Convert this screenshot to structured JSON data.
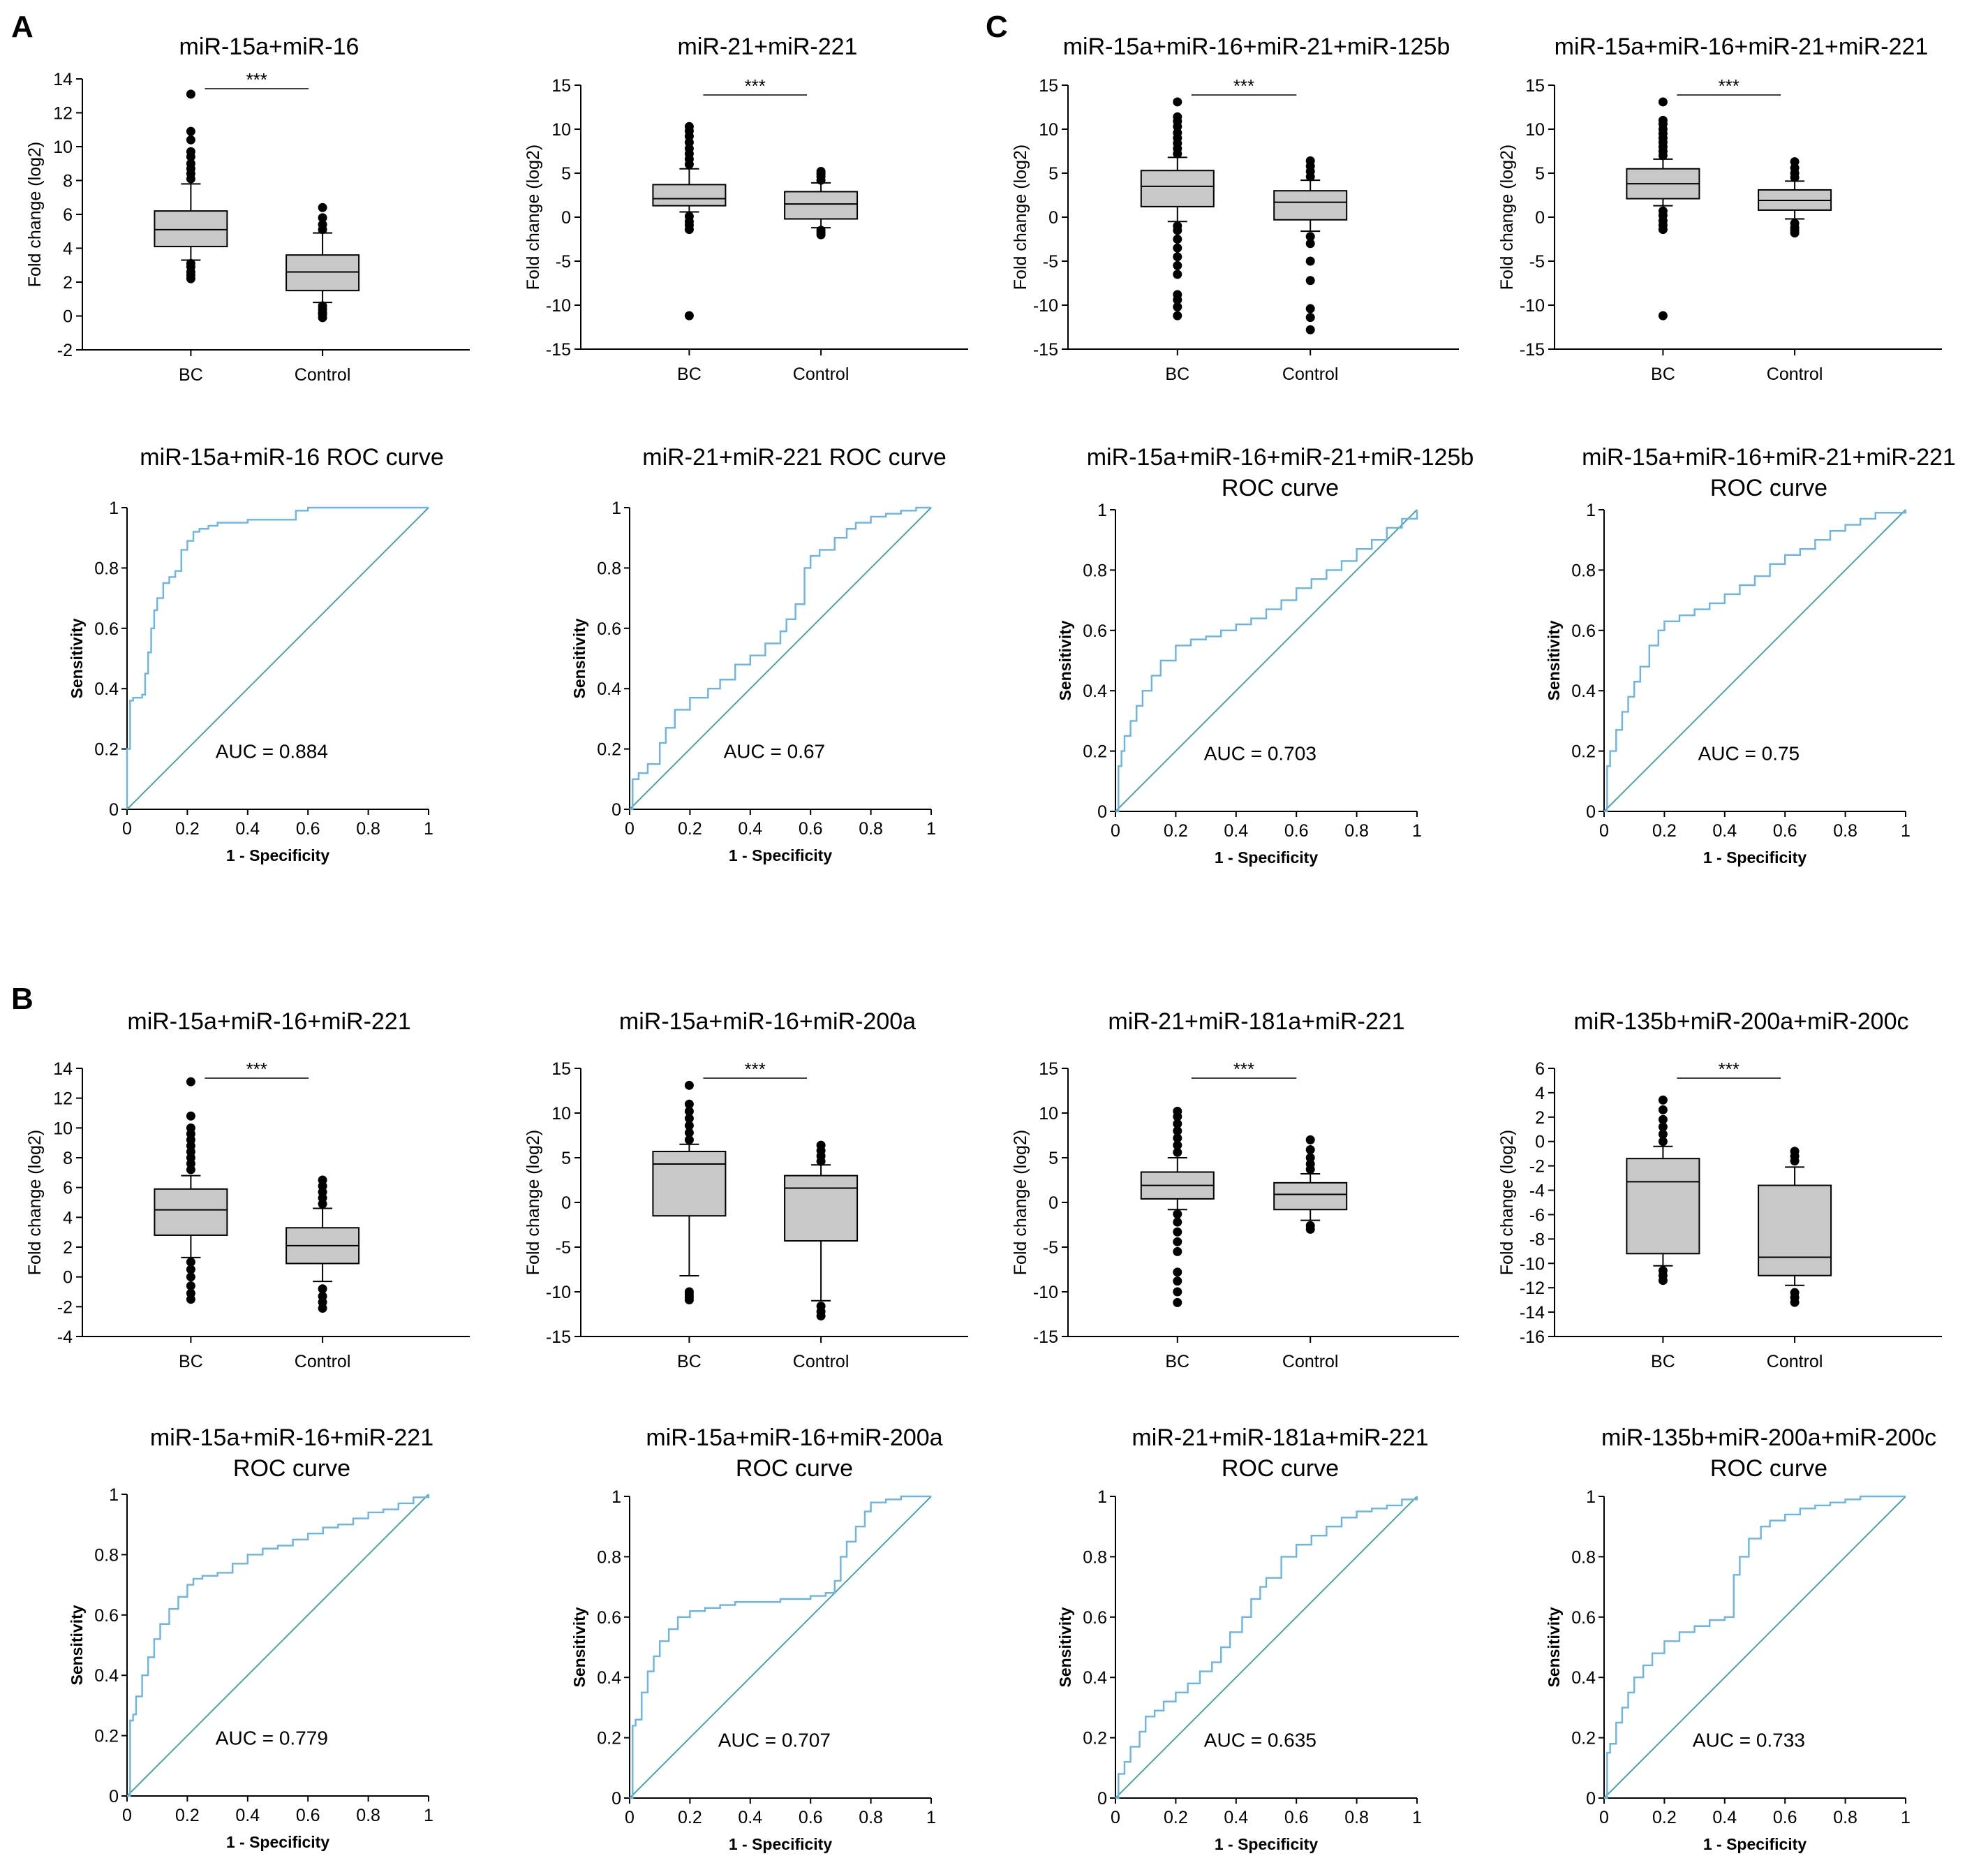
{
  "panel_labels": [
    "A",
    "B",
    "C"
  ],
  "colors": {
    "box_fill": "#c8c8c8",
    "roc_curve": "#6ab4e6",
    "diagonal": "#4aa3a0",
    "axis": "#000000"
  },
  "chart_data": [
    {
      "type": "box",
      "group": "A",
      "title": "miR-15a+miR-16",
      "ylabel": "Fold change (log2)",
      "ylim": [
        -2,
        14
      ],
      "yticks": [
        -2,
        0,
        2,
        4,
        6,
        8,
        10,
        12,
        14
      ],
      "categories": [
        "BC",
        "Control"
      ],
      "significance": "***",
      "boxes": [
        {
          "q1": 4.1,
          "median": 5.1,
          "q3": 6.2,
          "whisker_low": 3.3,
          "whisker_high": 7.8,
          "outliers": [
            2.2,
            2.4,
            2.6,
            2.9,
            3.1,
            8.1,
            8.4,
            8.7,
            9.0,
            9.4,
            9.7,
            10.4,
            10.9,
            13.1
          ]
        },
        {
          "q1": 1.5,
          "median": 2.6,
          "q3": 3.6,
          "whisker_low": 0.8,
          "whisker_high": 4.9,
          "outliers": [
            -0.1,
            0.1,
            0.2,
            0.4,
            0.6,
            5.1,
            5.4,
            5.8,
            6.4
          ]
        }
      ]
    },
    {
      "type": "box",
      "group": "A",
      "title": "miR-21+miR-221",
      "ylabel": "Fold change (log2)",
      "ylim": [
        -15,
        15
      ],
      "yticks": [
        -15,
        -10,
        -5,
        0,
        5,
        10,
        15
      ],
      "categories": [
        "BC",
        "Control"
      ],
      "significance": "***",
      "boxes": [
        {
          "q1": 1.3,
          "median": 2.1,
          "q3": 3.7,
          "whisker_low": 0.6,
          "whisker_high": 5.5,
          "outliers": [
            -11.2,
            -1.4,
            -0.9,
            -0.5,
            0.1,
            6.0,
            6.6,
            7.2,
            7.8,
            8.5,
            9.2,
            9.8,
            10.3
          ]
        },
        {
          "q1": -0.2,
          "median": 1.5,
          "q3": 2.9,
          "whisker_low": -1.2,
          "whisker_high": 3.9,
          "outliers": [
            -2.0,
            -1.7,
            -1.5,
            4.2,
            4.6,
            4.9,
            5.2
          ]
        }
      ]
    },
    {
      "type": "box",
      "group": "C",
      "title": "miR-15a+miR-16+miR-21+miR-125b",
      "ylabel": "Fold change (log2)",
      "ylim": [
        -15,
        15
      ],
      "yticks": [
        -15,
        -10,
        -5,
        0,
        5,
        10,
        15
      ],
      "categories": [
        "BC",
        "Control"
      ],
      "significance": "***",
      "boxes": [
        {
          "q1": 1.2,
          "median": 3.5,
          "q3": 5.3,
          "whisker_low": -0.5,
          "whisker_high": 6.8,
          "outliers": [
            -11.2,
            -10.2,
            -9.4,
            -8.8,
            -6.5,
            -5.5,
            -4.5,
            -3.5,
            -2.5,
            -1.5,
            -1.0,
            7.2,
            7.8,
            8.4,
            9.0,
            9.6,
            10.3,
            10.9,
            11.4,
            13.1
          ]
        },
        {
          "q1": -0.3,
          "median": 1.7,
          "q3": 3.0,
          "whisker_low": -1.6,
          "whisker_high": 4.2,
          "outliers": [
            -12.8,
            -11.4,
            -10.4,
            -7.2,
            -5.0,
            -3.0,
            -2.2,
            4.6,
            5.2,
            5.8,
            6.4
          ]
        }
      ]
    },
    {
      "type": "box",
      "group": "C",
      "title": "miR-15a+miR-16+miR-21+miR-221",
      "ylabel": "Fold change (log2)",
      "ylim": [
        -15,
        15
      ],
      "yticks": [
        -15,
        -10,
        -5,
        0,
        5,
        10,
        15
      ],
      "categories": [
        "BC",
        "Control"
      ],
      "significance": "***",
      "boxes": [
        {
          "q1": 2.1,
          "median": 3.8,
          "q3": 5.5,
          "whisker_low": 1.3,
          "whisker_high": 6.6,
          "outliers": [
            -11.2,
            -1.4,
            -0.9,
            -0.4,
            0.2,
            0.7,
            7.0,
            7.5,
            8.0,
            8.5,
            9.0,
            9.5,
            10.0,
            10.6,
            11.0,
            13.1
          ]
        },
        {
          "q1": 0.8,
          "median": 1.9,
          "q3": 3.1,
          "whisker_low": -0.2,
          "whisker_high": 4.1,
          "outliers": [
            -1.8,
            -1.5,
            -1.2,
            -0.7,
            4.5,
            5.0,
            5.6,
            6.3
          ]
        }
      ]
    },
    {
      "type": "roc",
      "group": "A",
      "title_lines": [
        "miR-15a+miR-16 ROC curve"
      ],
      "xlabel": "1 - Specificity",
      "ylabel": "Sensitivity",
      "auc_label": "AUC = 0.884",
      "x": [
        0,
        0,
        0.01,
        0.01,
        0.02,
        0.05,
        0.06,
        0.07,
        0.08,
        0.09,
        0.1,
        0.12,
        0.14,
        0.16,
        0.18,
        0.2,
        0.22,
        0.24,
        0.27,
        0.3,
        0.35,
        0.4,
        0.5,
        0.55,
        0.56,
        0.6,
        0.7,
        0.8,
        0.9,
        1.0
      ],
      "y": [
        0,
        0.2,
        0.21,
        0.36,
        0.37,
        0.38,
        0.45,
        0.52,
        0.6,
        0.66,
        0.7,
        0.75,
        0.77,
        0.79,
        0.86,
        0.89,
        0.92,
        0.93,
        0.94,
        0.95,
        0.95,
        0.96,
        0.96,
        0.96,
        0.99,
        1.0,
        1.0,
        1.0,
        1.0,
        1.0
      ]
    },
    {
      "type": "roc",
      "group": "A",
      "title_lines": [
        "miR-21+miR-221 ROC curve"
      ],
      "xlabel": "1 - Specificity",
      "ylabel": "Sensitivity",
      "auc_label": "AUC = 0.67",
      "x": [
        0,
        0.01,
        0.03,
        0.06,
        0.1,
        0.12,
        0.15,
        0.2,
        0.26,
        0.3,
        0.35,
        0.4,
        0.45,
        0.5,
        0.52,
        0.55,
        0.58,
        0.6,
        0.63,
        0.68,
        0.72,
        0.75,
        0.8,
        0.85,
        0.9,
        0.95,
        1.0
      ],
      "y": [
        0,
        0.1,
        0.12,
        0.15,
        0.22,
        0.27,
        0.33,
        0.37,
        0.4,
        0.43,
        0.48,
        0.51,
        0.55,
        0.59,
        0.63,
        0.68,
        0.8,
        0.84,
        0.86,
        0.9,
        0.93,
        0.95,
        0.97,
        0.98,
        0.99,
        1.0,
        1.0
      ]
    },
    {
      "type": "roc",
      "group": "C",
      "title_lines": [
        "miR-15a+miR-16+miR-21+miR-125b",
        "ROC curve"
      ],
      "xlabel": "1 - Specificity",
      "ylabel": "Sensitivity",
      "auc_label": "AUC = 0.703",
      "x": [
        0,
        0.01,
        0.02,
        0.03,
        0.05,
        0.07,
        0.09,
        0.12,
        0.15,
        0.2,
        0.25,
        0.3,
        0.35,
        0.4,
        0.45,
        0.5,
        0.55,
        0.6,
        0.65,
        0.7,
        0.75,
        0.8,
        0.85,
        0.9,
        0.95,
        1.0
      ],
      "y": [
        0,
        0.15,
        0.2,
        0.25,
        0.3,
        0.35,
        0.4,
        0.45,
        0.5,
        0.55,
        0.57,
        0.58,
        0.6,
        0.62,
        0.64,
        0.67,
        0.7,
        0.74,
        0.77,
        0.8,
        0.83,
        0.87,
        0.9,
        0.94,
        0.97,
        1.0
      ]
    },
    {
      "type": "roc",
      "group": "C",
      "title_lines": [
        "miR-15a+miR-16+miR-21+miR-221",
        "ROC curve"
      ],
      "xlabel": "1 - Specificity",
      "ylabel": "Sensitivity",
      "auc_label": "AUC = 0.75",
      "x": [
        0,
        0.01,
        0.02,
        0.04,
        0.06,
        0.08,
        0.1,
        0.12,
        0.15,
        0.18,
        0.2,
        0.25,
        0.3,
        0.35,
        0.4,
        0.45,
        0.5,
        0.55,
        0.6,
        0.65,
        0.7,
        0.75,
        0.8,
        0.85,
        0.9,
        1.0
      ],
      "y": [
        0,
        0.15,
        0.2,
        0.27,
        0.33,
        0.38,
        0.43,
        0.48,
        0.55,
        0.6,
        0.63,
        0.65,
        0.67,
        0.69,
        0.72,
        0.75,
        0.78,
        0.82,
        0.85,
        0.87,
        0.9,
        0.93,
        0.95,
        0.97,
        0.99,
        1.0
      ]
    },
    {
      "type": "box",
      "group": "B",
      "title": "miR-15a+miR-16+miR-221",
      "ylabel": "Fold change (log2)",
      "ylim": [
        -4,
        14
      ],
      "yticks": [
        -4,
        -2,
        0,
        2,
        4,
        6,
        8,
        10,
        12,
        14
      ],
      "categories": [
        "BC",
        "Control"
      ],
      "significance": "***",
      "boxes": [
        {
          "q1": 2.8,
          "median": 4.5,
          "q3": 5.9,
          "whisker_low": 1.3,
          "whisker_high": 6.8,
          "outliers": [
            -1.5,
            -1.1,
            -0.6,
            0,
            0.5,
            1.0,
            7.2,
            7.6,
            8.0,
            8.4,
            8.8,
            9.2,
            9.6,
            10.0,
            10.8,
            13.1
          ]
        },
        {
          "q1": 0.9,
          "median": 2.1,
          "q3": 3.3,
          "whisker_low": -0.3,
          "whisker_high": 4.6,
          "outliers": [
            -2.1,
            -1.7,
            -1.3,
            -0.8,
            4.9,
            5.3,
            5.7,
            6.1,
            6.5
          ]
        }
      ]
    },
    {
      "type": "box",
      "group": "B",
      "title": "miR-15a+miR-16+miR-200a",
      "ylabel": "Fold change (log2)",
      "ylim": [
        -15,
        15
      ],
      "yticks": [
        -15,
        -10,
        -5,
        0,
        5,
        10,
        15
      ],
      "categories": [
        "BC",
        "Control"
      ],
      "significance": "***",
      "boxes": [
        {
          "q1": -1.5,
          "median": 4.3,
          "q3": 5.7,
          "whisker_low": -8.2,
          "whisker_high": 6.5,
          "outliers": [
            -10.9,
            -10.6,
            -10.3,
            -10.0,
            7.0,
            7.8,
            8.6,
            9.4,
            10.2,
            11.0,
            13.1
          ]
        },
        {
          "q1": -4.3,
          "median": 1.6,
          "q3": 3.0,
          "whisker_low": -11.0,
          "whisker_high": 4.2,
          "outliers": [
            -12.7,
            -12.2,
            -11.6,
            4.6,
            5.2,
            5.8,
            6.4
          ]
        }
      ]
    },
    {
      "type": "box",
      "group": "B",
      "title": "miR-21+miR-181a+miR-221",
      "ylabel": "Fold change (log2)",
      "ylim": [
        -15,
        15
      ],
      "yticks": [
        -15,
        -10,
        -5,
        0,
        5,
        10,
        15
      ],
      "categories": [
        "BC",
        "Control"
      ],
      "significance": "***",
      "boxes": [
        {
          "q1": 0.4,
          "median": 1.9,
          "q3": 3.4,
          "whisker_low": -0.8,
          "whisker_high": 5.0,
          "outliers": [
            -11.2,
            -10.0,
            -8.8,
            -7.8,
            -5.5,
            -4.4,
            -3.3,
            -2.2,
            -1.3,
            5.6,
            6.4,
            7.2,
            8.0,
            8.8,
            9.6,
            10.2
          ]
        },
        {
          "q1": -0.8,
          "median": 0.9,
          "q3": 2.2,
          "whisker_low": -2.0,
          "whisker_high": 3.2,
          "outliers": [
            -3.0,
            -2.6,
            3.7,
            4.3,
            5.0,
            5.9,
            7.0
          ]
        }
      ]
    },
    {
      "type": "box",
      "group": "B",
      "title": "miR-135b+miR-200a+miR-200c",
      "ylabel": "Fold change (log2)",
      "ylim": [
        -16,
        6
      ],
      "yticks": [
        -16,
        -14,
        -12,
        -10,
        -8,
        -6,
        -4,
        -2,
        0,
        2,
        4,
        6
      ],
      "categories": [
        "BC",
        "Control"
      ],
      "significance": "***",
      "boxes": [
        {
          "q1": -9.2,
          "median": -3.3,
          "q3": -1.4,
          "whisker_low": -10.2,
          "whisker_high": -0.4,
          "outliers": [
            -11.4,
            -11.0,
            -10.6,
            0.0,
            0.6,
            1.2,
            1.8,
            2.6,
            3.4
          ]
        },
        {
          "q1": -11.0,
          "median": -9.5,
          "q3": -3.6,
          "whisker_low": -11.8,
          "whisker_high": -2.1,
          "outliers": [
            -13.2,
            -12.8,
            -12.4,
            -1.6,
            -1.2,
            -0.8
          ]
        }
      ]
    },
    {
      "type": "roc",
      "group": "B",
      "title_lines": [
        "miR-15a+miR-16+miR-221",
        "ROC curve"
      ],
      "xlabel": "1 - Specificity",
      "ylabel": "Sensitivity",
      "auc_label": "AUC = 0.779",
      "x": [
        0,
        0.01,
        0.02,
        0.03,
        0.05,
        0.07,
        0.09,
        0.11,
        0.14,
        0.17,
        0.2,
        0.22,
        0.25,
        0.3,
        0.35,
        0.4,
        0.45,
        0.5,
        0.55,
        0.6,
        0.65,
        0.7,
        0.75,
        0.8,
        0.85,
        0.9,
        0.95,
        1.0
      ],
      "y": [
        0,
        0.25,
        0.27,
        0.33,
        0.4,
        0.46,
        0.52,
        0.57,
        0.62,
        0.66,
        0.7,
        0.72,
        0.73,
        0.74,
        0.77,
        0.8,
        0.82,
        0.83,
        0.85,
        0.87,
        0.89,
        0.9,
        0.92,
        0.94,
        0.95,
        0.97,
        0.99,
        1.0
      ]
    },
    {
      "type": "roc",
      "group": "B",
      "title_lines": [
        "miR-15a+miR-16+miR-200a",
        "ROC curve"
      ],
      "xlabel": "1 - Specificity",
      "ylabel": "Sensitivity",
      "auc_label": "AUC = 0.707",
      "x": [
        0,
        0.01,
        0.02,
        0.04,
        0.06,
        0.08,
        0.1,
        0.13,
        0.16,
        0.2,
        0.25,
        0.3,
        0.35,
        0.4,
        0.5,
        0.6,
        0.65,
        0.68,
        0.7,
        0.72,
        0.75,
        0.78,
        0.8,
        0.85,
        0.9,
        0.95,
        1.0
      ],
      "y": [
        0,
        0.24,
        0.26,
        0.35,
        0.42,
        0.47,
        0.52,
        0.56,
        0.6,
        0.62,
        0.63,
        0.64,
        0.65,
        0.65,
        0.66,
        0.67,
        0.68,
        0.72,
        0.8,
        0.85,
        0.9,
        0.95,
        0.98,
        0.99,
        1.0,
        1.0,
        1.0
      ]
    },
    {
      "type": "roc",
      "group": "B",
      "title_lines": [
        "miR-21+miR-181a+miR-221",
        "ROC curve"
      ],
      "xlabel": "1 - Specificity",
      "ylabel": "Sensitivity",
      "auc_label": "AUC = 0.635",
      "x": [
        0,
        0.01,
        0.03,
        0.05,
        0.08,
        0.1,
        0.13,
        0.16,
        0.2,
        0.24,
        0.28,
        0.32,
        0.35,
        0.38,
        0.42,
        0.45,
        0.48,
        0.5,
        0.55,
        0.6,
        0.65,
        0.7,
        0.75,
        0.8,
        0.85,
        0.9,
        0.95,
        1.0
      ],
      "y": [
        0,
        0.08,
        0.12,
        0.17,
        0.22,
        0.27,
        0.29,
        0.32,
        0.35,
        0.38,
        0.42,
        0.45,
        0.5,
        0.55,
        0.6,
        0.66,
        0.7,
        0.73,
        0.8,
        0.84,
        0.87,
        0.9,
        0.93,
        0.95,
        0.96,
        0.97,
        0.99,
        1.0
      ]
    },
    {
      "type": "roc",
      "group": "B",
      "title_lines": [
        "miR-135b+miR-200a+miR-200c",
        "ROC curve"
      ],
      "xlabel": "1 - Specificity",
      "ylabel": "Sensitivity",
      "auc_label": "AUC = 0.733",
      "x": [
        0,
        0.01,
        0.02,
        0.04,
        0.06,
        0.08,
        0.1,
        0.13,
        0.16,
        0.2,
        0.25,
        0.3,
        0.35,
        0.4,
        0.42,
        0.43,
        0.45,
        0.48,
        0.52,
        0.55,
        0.6,
        0.65,
        0.7,
        0.75,
        0.8,
        0.85,
        0.9,
        1.0
      ],
      "y": [
        0,
        0.15,
        0.18,
        0.25,
        0.3,
        0.35,
        0.4,
        0.44,
        0.48,
        0.52,
        0.55,
        0.57,
        0.59,
        0.6,
        0.6,
        0.74,
        0.8,
        0.86,
        0.9,
        0.92,
        0.94,
        0.96,
        0.97,
        0.98,
        0.99,
        1.0,
        1.0,
        1.0
      ]
    }
  ]
}
